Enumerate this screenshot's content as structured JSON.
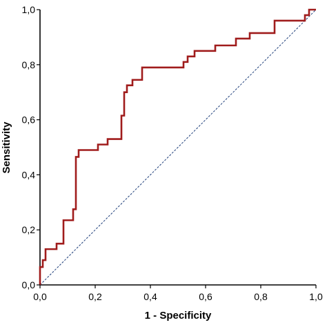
{
  "chart_data": {
    "type": "line",
    "title": "",
    "xlabel": "1 - Specificity",
    "ylabel": "Sensitivity",
    "xlim": [
      0,
      1
    ],
    "ylim": [
      0,
      1
    ],
    "xticks": [
      0,
      0.2,
      0.4,
      0.6,
      0.8,
      1.0
    ],
    "yticks": [
      0,
      0.2,
      0.4,
      0.6,
      0.8,
      1.0
    ],
    "xtick_labels": [
      "0,0",
      "0,2",
      "0,4",
      "0,6",
      "0,8",
      "1,0"
    ],
    "ytick_labels": [
      "0,0",
      "0,2",
      "0,4",
      "0,6",
      "0,8",
      "1,0"
    ],
    "grid": false,
    "legend": "none",
    "series": [
      {
        "color": "#a01c1c",
        "style": "solid",
        "step": true,
        "points": [
          [
            0.0,
            0.0
          ],
          [
            0.0,
            0.065
          ],
          [
            0.01,
            0.065
          ],
          [
            0.01,
            0.09
          ],
          [
            0.02,
            0.09
          ],
          [
            0.02,
            0.13
          ],
          [
            0.06,
            0.13
          ],
          [
            0.06,
            0.15
          ],
          [
            0.085,
            0.15
          ],
          [
            0.085,
            0.235
          ],
          [
            0.12,
            0.235
          ],
          [
            0.12,
            0.275
          ],
          [
            0.13,
            0.275
          ],
          [
            0.13,
            0.465
          ],
          [
            0.14,
            0.465
          ],
          [
            0.14,
            0.49
          ],
          [
            0.21,
            0.49
          ],
          [
            0.21,
            0.51
          ],
          [
            0.245,
            0.51
          ],
          [
            0.245,
            0.53
          ],
          [
            0.295,
            0.53
          ],
          [
            0.295,
            0.615
          ],
          [
            0.305,
            0.615
          ],
          [
            0.305,
            0.7
          ],
          [
            0.315,
            0.7
          ],
          [
            0.315,
            0.725
          ],
          [
            0.335,
            0.725
          ],
          [
            0.335,
            0.745
          ],
          [
            0.37,
            0.745
          ],
          [
            0.37,
            0.79
          ],
          [
            0.52,
            0.79
          ],
          [
            0.52,
            0.81
          ],
          [
            0.535,
            0.81
          ],
          [
            0.535,
            0.83
          ],
          [
            0.56,
            0.83
          ],
          [
            0.56,
            0.85
          ],
          [
            0.635,
            0.85
          ],
          [
            0.635,
            0.87
          ],
          [
            0.71,
            0.87
          ],
          [
            0.71,
            0.895
          ],
          [
            0.76,
            0.895
          ],
          [
            0.76,
            0.915
          ],
          [
            0.85,
            0.915
          ],
          [
            0.85,
            0.96
          ],
          [
            0.96,
            0.96
          ],
          [
            0.96,
            0.98
          ],
          [
            0.975,
            0.98
          ],
          [
            0.975,
            1.0
          ],
          [
            1.0,
            1.0
          ]
        ]
      },
      {
        "color": "#1f3f7a",
        "style": "dashed",
        "points": [
          [
            0,
            0
          ],
          [
            1,
            1
          ]
        ]
      }
    ]
  }
}
